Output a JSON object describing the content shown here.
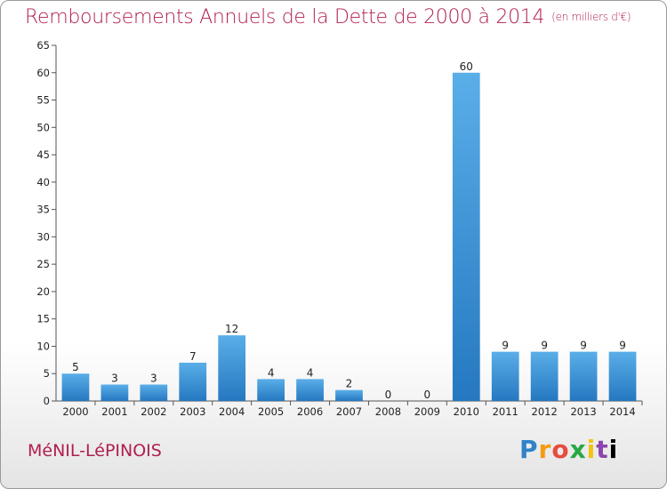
{
  "title": "Remboursements Annuels de la Dette de 2000 à 2014",
  "subtitle": "(en milliers d'€)",
  "commune": "MéNIL-LéPINOIS",
  "logo_text": [
    "P",
    "r",
    "o",
    "x",
    "i",
    "t",
    "i"
  ],
  "chart_data": {
    "type": "bar",
    "categories": [
      "2000",
      "2001",
      "2002",
      "2003",
      "2004",
      "2005",
      "2006",
      "2007",
      "2008",
      "2009",
      "2010",
      "2011",
      "2012",
      "2013",
      "2014"
    ],
    "values": [
      5,
      3,
      3,
      7,
      12,
      4,
      4,
      2,
      0,
      0,
      60,
      9,
      9,
      9,
      9
    ],
    "ylim": [
      0,
      65
    ],
    "yticks": [
      0,
      5,
      10,
      15,
      20,
      25,
      30,
      35,
      40,
      45,
      50,
      55,
      60,
      65
    ],
    "grid": false,
    "bar_color_top": "#5aaee8",
    "bar_color_bottom": "#2578c0"
  }
}
